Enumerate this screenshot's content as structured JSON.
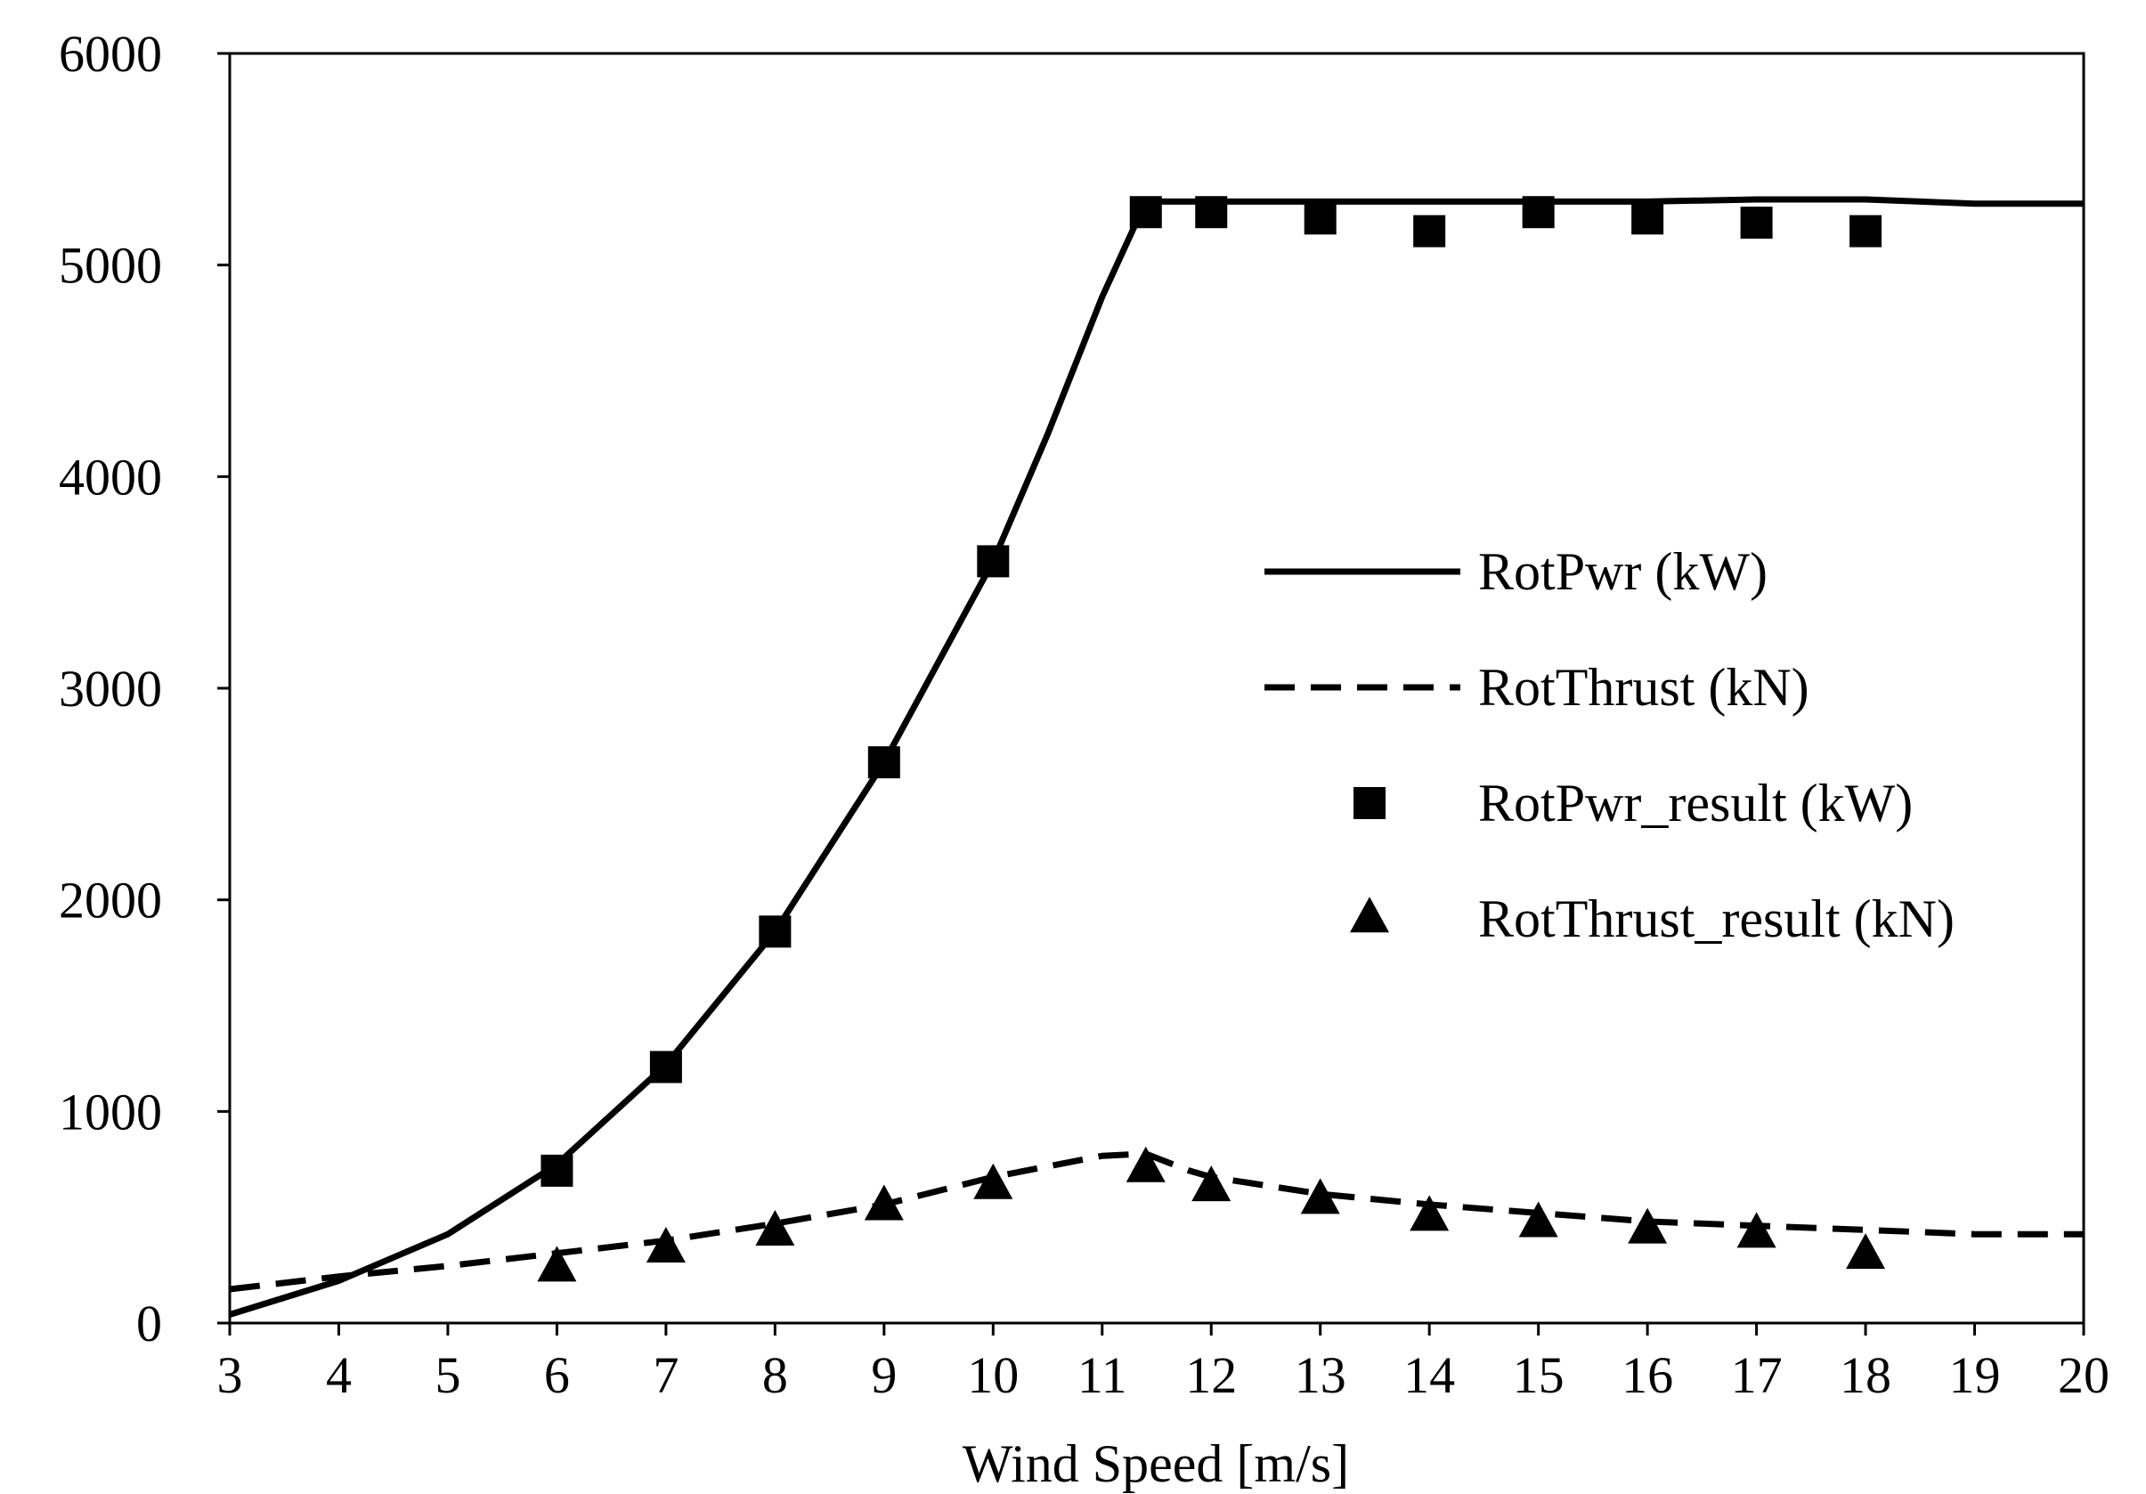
{
  "chart_data": {
    "type": "line",
    "title": "",
    "xlabel": "Wind Speed [m/s]",
    "ylabel": "",
    "xlim": [
      3,
      20
    ],
    "ylim": [
      0,
      6000
    ],
    "x_ticks": [
      3,
      4,
      5,
      6,
      7,
      8,
      9,
      10,
      11,
      12,
      13,
      14,
      15,
      16,
      17,
      18,
      19,
      20
    ],
    "y_ticks": [
      0,
      1000,
      2000,
      3000,
      4000,
      5000,
      6000
    ],
    "grid": false,
    "legend_position": "right-middle",
    "series": [
      {
        "name": "RotPwr (kW)",
        "style": "solid-line",
        "x": [
          3,
          4,
          5,
          6,
          7,
          8,
          9,
          10,
          10.5,
          11,
          11.4,
          12,
          13,
          14,
          15,
          16,
          17,
          18,
          19,
          20
        ],
        "y": [
          40,
          200,
          420,
          750,
          1220,
          1850,
          2650,
          3600,
          4200,
          4850,
          5300,
          5300,
          5300,
          5300,
          5300,
          5300,
          5310,
          5310,
          5290,
          5290
        ]
      },
      {
        "name": "RotThrust (kN)",
        "style": "dashed-line",
        "x": [
          3,
          4,
          5,
          6,
          7,
          8,
          9,
          10,
          11,
          11.4,
          11.8,
          12,
          13,
          14,
          15,
          16,
          17,
          18,
          19,
          20
        ],
        "y": [
          160,
          220,
          270,
          330,
          390,
          470,
          560,
          690,
          790,
          800,
          720,
          690,
          610,
          560,
          520,
          480,
          460,
          440,
          420,
          420
        ]
      },
      {
        "name": "RotPwr_result (kW)",
        "style": "square-markers",
        "x": [
          6,
          7,
          8,
          9,
          10,
          11.4,
          12,
          13,
          14,
          15,
          16,
          17,
          18
        ],
        "y": [
          720,
          1210,
          1850,
          2650,
          3600,
          5250,
          5250,
          5220,
          5160,
          5250,
          5220,
          5200,
          5160
        ]
      },
      {
        "name": "RotThrust_result (kN)",
        "style": "triangle-markers",
        "x": [
          6,
          7,
          8,
          9,
          10,
          11.4,
          12,
          13,
          14,
          15,
          16,
          17,
          18
        ],
        "y": [
          260,
          350,
          430,
          550,
          650,
          730,
          640,
          580,
          500,
          470,
          440,
          420,
          320
        ]
      }
    ]
  }
}
